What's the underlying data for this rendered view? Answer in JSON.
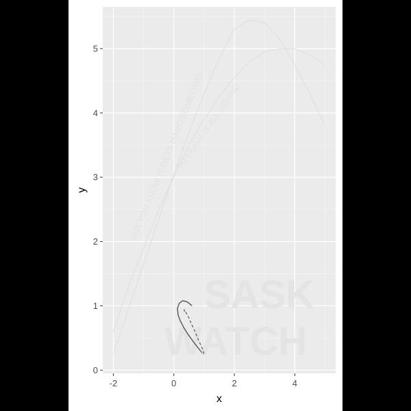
{
  "chart_data": {
    "type": "line",
    "title": "",
    "xlabel": "x",
    "ylabel": "y",
    "xlim": [
      -2.35,
      5.35
    ],
    "ylim": [
      -0.05,
      5.65
    ],
    "x_ticks": [
      -2,
      0,
      2,
      4
    ],
    "x_tick_labels": [
      "-2",
      "0",
      "2",
      "4"
    ],
    "y_ticks": [
      0,
      1,
      2,
      3,
      4,
      5
    ],
    "y_tick_labels": [
      "0",
      "1",
      "2",
      "3",
      "4",
      "5"
    ],
    "grid": true,
    "panel_color": "#ebebeb",
    "series": [
      {
        "color": "#dcdcdc",
        "x": [
          -2.0,
          -1.5,
          -1.0,
          -0.5,
          0.0,
          0.5,
          1.0,
          1.5,
          2.0,
          2.5,
          3.0,
          3.5,
          4.0,
          4.5,
          5.0
        ],
        "y": [
          0.6,
          1.3,
          1.9,
          2.5,
          3.0,
          3.5,
          3.9,
          4.25,
          4.55,
          4.8,
          4.95,
          5.0,
          5.0,
          4.9,
          4.75
        ]
      },
      {
        "color": "#dcdcdc",
        "x": [
          -2.0,
          -1.5,
          -1.0,
          -0.5,
          0.0,
          0.5,
          1.0,
          1.5,
          2.0,
          2.5,
          3.0,
          3.5,
          4.0,
          4.5,
          5.0
        ],
        "y": [
          0.25,
          0.95,
          1.65,
          2.35,
          3.05,
          3.7,
          4.3,
          4.85,
          5.3,
          5.45,
          5.4,
          5.15,
          4.75,
          4.3,
          3.8
        ]
      },
      {
        "color": "#555555",
        "x": [
          0.6,
          0.45,
          0.3,
          0.18,
          0.12,
          0.14,
          0.22,
          0.33,
          0.45,
          0.57,
          0.68,
          0.78,
          0.88,
          0.95,
          0.99,
          0.98,
          0.92,
          0.84,
          0.76,
          0.67,
          0.58,
          0.5,
          0.42,
          0.36,
          0.34,
          0.36
        ],
        "y": [
          1.0,
          1.06,
          1.08,
          1.04,
          0.96,
          0.86,
          0.76,
          0.66,
          0.57,
          0.49,
          0.42,
          0.36,
          0.3,
          0.26,
          0.25,
          0.29,
          0.36,
          0.44,
          0.53,
          0.63,
          0.72,
          0.81,
          0.88,
          0.93,
          0.94,
          0.9
        ],
        "dash_from_index": 12
      }
    ]
  },
  "watermark": {
    "lines": [
      "BUT YOU KNOW IT GETS HARD SOMETIMES",
      "TO LEAVE IT ALL BEHIND"
    ],
    "logo": [
      "SASK",
      "WATCH"
    ]
  }
}
